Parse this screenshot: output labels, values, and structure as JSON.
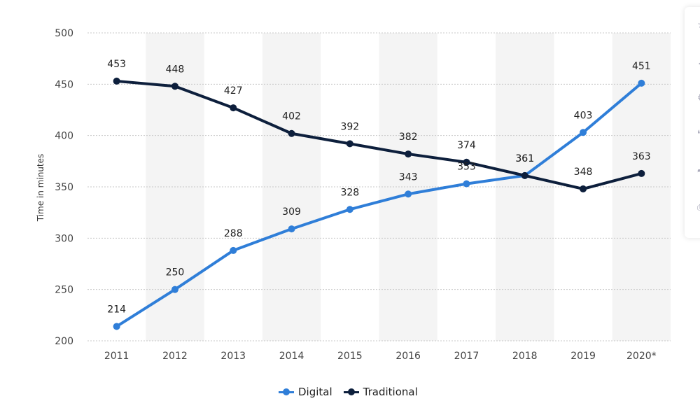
{
  "chart_data": {
    "type": "line",
    "x": [
      "2011",
      "2012",
      "2013",
      "2014",
      "2015",
      "2016",
      "2017",
      "2018",
      "2019",
      "2020*"
    ],
    "series": [
      {
        "name": "Digital",
        "color": "#2f7ed8",
        "values": [
          214,
          250,
          288,
          309,
          328,
          343,
          353,
          361,
          403,
          451
        ]
      },
      {
        "name": "Traditional",
        "color": "#0d1f3c",
        "values": [
          453,
          448,
          427,
          402,
          392,
          382,
          374,
          361,
          348,
          363
        ]
      }
    ],
    "ylabel": "Time in minutes",
    "ylim": [
      200,
      500
    ],
    "yticks": [
      200,
      250,
      300,
      350,
      400,
      450,
      500
    ],
    "grid": "horizontal dotted",
    "band_color": "#f4f4f4",
    "legend_position": "bottom"
  },
  "side_toolbar": {
    "icons": [
      "star-icon",
      "bell-icon",
      "settings-icon",
      "quote-icon",
      "share-icon",
      "print-icon"
    ]
  }
}
